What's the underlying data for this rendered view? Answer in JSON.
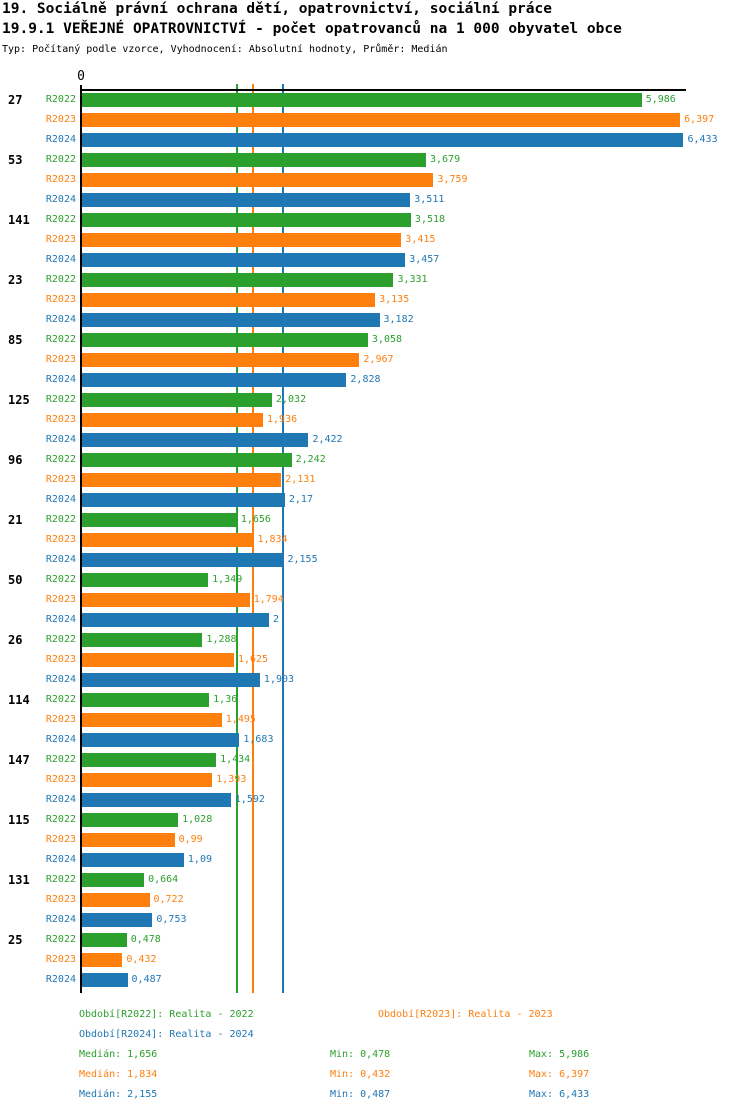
{
  "header": {
    "title": "19. Sociálně právní ochrana dětí, opatrovnictví, sociální práce",
    "subtitle": "19.9.1 VEŘEJNÉ OPATROVNICTVÍ - počet opatrovanců na 1 000 obyvatel obce",
    "meta": "Typ: Počítaný podle vzorce, Vyhodnocení: Absolutní hodnoty, Průměr: Medián"
  },
  "colors": {
    "r2022": "#2ca02c",
    "r2023": "#ff7f0e",
    "r2024": "#1f77b4",
    "axis": "#000000",
    "background": "#ffffff"
  },
  "chart_data": {
    "type": "bar",
    "orientation": "horizontal",
    "title": "19.9.1 VEŘEJNÉ OPATROVNICTVÍ - počet opatrovanců na 1 000 obyvatel obce",
    "xlabel": "",
    "ylabel": "",
    "xlim": [
      0,
      6.5
    ],
    "origin_label": "0",
    "grid": false,
    "legend_position": "bottom",
    "categories": [
      "27",
      "53",
      "141",
      "23",
      "85",
      "125",
      "96",
      "21",
      "50",
      "26",
      "114",
      "147",
      "115",
      "131",
      "25"
    ],
    "series": [
      {
        "name": "R2022",
        "color": "#2ca02c",
        "values": [
          5.986,
          3.679,
          3.518,
          3.331,
          3.058,
          2.032,
          2.242,
          1.656,
          1.349,
          1.288,
          1.36,
          1.434,
          1.028,
          0.664,
          0.478
        ],
        "labels": [
          "5,986",
          "3,679",
          "3,518",
          "3,331",
          "3,058",
          "2,032",
          "2,242",
          "1,656",
          "1,349",
          "1,288",
          "1,36",
          "1,434",
          "1,028",
          "0,664",
          "0,478"
        ],
        "median": 1.656,
        "min": 0.478,
        "max": 5.986
      },
      {
        "name": "R2023",
        "color": "#ff7f0e",
        "values": [
          6.397,
          3.759,
          3.415,
          3.135,
          2.967,
          1.936,
          2.131,
          1.834,
          1.794,
          1.625,
          1.495,
          1.393,
          0.99,
          0.722,
          0.432
        ],
        "labels": [
          "6,397",
          "3,759",
          "3,415",
          "3,135",
          "2,967",
          "1,936",
          "2,131",
          "1,834",
          "1,794",
          "1,625",
          "1,495",
          "1,393",
          "0,99",
          "0,722",
          "0,432"
        ],
        "median": 1.834,
        "min": 0.432,
        "max": 6.397
      },
      {
        "name": "R2024",
        "color": "#1f77b4",
        "values": [
          6.433,
          3.511,
          3.457,
          3.182,
          2.828,
          2.422,
          2.17,
          2.155,
          2.0,
          1.903,
          1.683,
          1.592,
          1.09,
          0.753,
          0.487
        ],
        "labels": [
          "6,433",
          "3,511",
          "3,457",
          "3,182",
          "2,828",
          "2,422",
          "2,17",
          "2,155",
          "2",
          "1,903",
          "1,683",
          "1,592",
          "1,09",
          "0,753",
          "0,487"
        ],
        "median": 2.155,
        "min": 0.487,
        "max": 6.433
      }
    ],
    "median_lines": [
      {
        "series": "R2022",
        "value": 1.656,
        "color": "#2ca02c"
      },
      {
        "series": "R2023",
        "value": 1.834,
        "color": "#ff7f0e"
      },
      {
        "series": "R2024",
        "value": 2.155,
        "color": "#1f77b4"
      }
    ]
  },
  "legend": {
    "entries": [
      {
        "label": "Období[R2022]: Realita - 2022",
        "color": "#2ca02c"
      },
      {
        "label": "Období[R2023]: Realita - 2023",
        "color": "#ff7f0e"
      },
      {
        "label": "Období[R2024]: Realita - 2024",
        "color": "#1f77b4"
      }
    ],
    "stats": [
      {
        "median": "Medián: 1,656",
        "min": "Min: 0,478",
        "max": "Max: 5,986",
        "color": "#2ca02c"
      },
      {
        "median": "Medián: 1,834",
        "min": "Min: 0,432",
        "max": "Max: 6,397",
        "color": "#ff7f0e"
      },
      {
        "median": "Medián: 2,155",
        "min": "Min: 0,487",
        "max": "Max: 6,433",
        "color": "#1f77b4"
      }
    ]
  }
}
